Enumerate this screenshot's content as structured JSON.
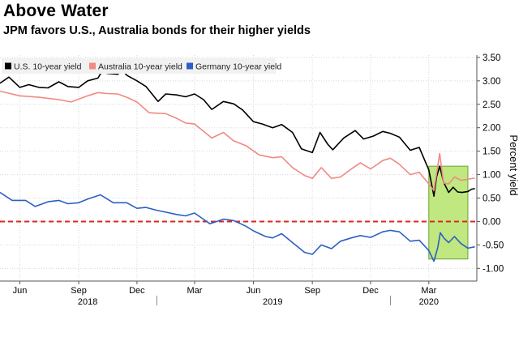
{
  "title": "Above Water",
  "subtitle": "JPM favors U.S., Australia bonds for their higher yields",
  "chart_data": {
    "type": "line",
    "title": "Above Water",
    "subtitle": "JPM favors U.S., Australia bonds for their higher yields",
    "ylabel": "Percent yield",
    "xlabel": "",
    "ylim": [
      -1.15,
      3.55
    ],
    "xlim": [
      "2018-05-01",
      "2020-05-15"
    ],
    "y_ticks": [
      3.5,
      3.0,
      2.5,
      2.0,
      1.5,
      1.0,
      0.5,
      0.0,
      -0.5,
      -1.0
    ],
    "y_tick_labels": [
      "3.50",
      "3.00",
      "2.50",
      "2.00",
      "1.50",
      "1.00",
      "0.50",
      "0.00",
      "-0.50",
      "-1.00"
    ],
    "x_ticks": [
      {
        "date": "2018-06-01",
        "label": "Jun"
      },
      {
        "date": "2018-09-01",
        "label": "Sep"
      },
      {
        "date": "2018-12-01",
        "label": "Dec"
      },
      {
        "date": "2019-03-01",
        "label": "Mar"
      },
      {
        "date": "2019-06-01",
        "label": "Jun"
      },
      {
        "date": "2019-09-01",
        "label": "Sep"
      },
      {
        "date": "2019-12-01",
        "label": "Dec"
      },
      {
        "date": "2020-03-01",
        "label": "Mar"
      }
    ],
    "year_labels": [
      {
        "date": "2018-09-15",
        "label": "2018"
      },
      {
        "date": "2019-07-01",
        "label": "2019"
      },
      {
        "date": "2020-03-01",
        "label": "2020"
      }
    ],
    "year_separators": [
      "2019-01-01",
      "2020-01-01"
    ],
    "grid": true,
    "legend_placement": "top-left",
    "reference_line": {
      "y": 0.0,
      "color": "#d9281e",
      "style": "dashed"
    },
    "highlight_box": {
      "x0": "2020-03-01",
      "x1": "2020-05-01",
      "y0": -0.8,
      "y1": 1.18,
      "color": "#b5e36a"
    },
    "series": [
      {
        "name": "U.S. 10-year yield",
        "color": "#000000",
        "points": [
          [
            "2018-05-01",
            2.95
          ],
          [
            "2018-05-15",
            3.08
          ],
          [
            "2018-06-01",
            2.86
          ],
          [
            "2018-06-15",
            2.92
          ],
          [
            "2018-07-01",
            2.86
          ],
          [
            "2018-07-15",
            2.85
          ],
          [
            "2018-08-01",
            2.98
          ],
          [
            "2018-08-15",
            2.88
          ],
          [
            "2018-09-01",
            2.86
          ],
          [
            "2018-09-15",
            3.0
          ],
          [
            "2018-10-01",
            3.06
          ],
          [
            "2018-10-08",
            3.22
          ],
          [
            "2018-10-15",
            3.16
          ],
          [
            "2018-11-01",
            3.14
          ],
          [
            "2018-11-08",
            3.23
          ],
          [
            "2018-11-15",
            3.12
          ],
          [
            "2018-12-01",
            3.0
          ],
          [
            "2018-12-15",
            2.88
          ],
          [
            "2019-01-03",
            2.56
          ],
          [
            "2019-01-15",
            2.72
          ],
          [
            "2019-02-01",
            2.7
          ],
          [
            "2019-02-15",
            2.66
          ],
          [
            "2019-03-01",
            2.72
          ],
          [
            "2019-03-15",
            2.6
          ],
          [
            "2019-03-28",
            2.39
          ],
          [
            "2019-04-15",
            2.56
          ],
          [
            "2019-05-01",
            2.51
          ],
          [
            "2019-05-15",
            2.38
          ],
          [
            "2019-06-01",
            2.13
          ],
          [
            "2019-06-15",
            2.08
          ],
          [
            "2019-07-01",
            2.0
          ],
          [
            "2019-07-15",
            2.07
          ],
          [
            "2019-08-01",
            1.9
          ],
          [
            "2019-08-15",
            1.55
          ],
          [
            "2019-09-01",
            1.47
          ],
          [
            "2019-09-13",
            1.9
          ],
          [
            "2019-09-25",
            1.65
          ],
          [
            "2019-10-03",
            1.53
          ],
          [
            "2019-10-20",
            1.78
          ],
          [
            "2019-11-07",
            1.94
          ],
          [
            "2019-11-20",
            1.76
          ],
          [
            "2019-12-05",
            1.82
          ],
          [
            "2019-12-20",
            1.92
          ],
          [
            "2020-01-01",
            1.88
          ],
          [
            "2020-01-15",
            1.8
          ],
          [
            "2020-02-01",
            1.52
          ],
          [
            "2020-02-15",
            1.58
          ],
          [
            "2020-03-01",
            1.1
          ],
          [
            "2020-03-09",
            0.54
          ],
          [
            "2020-03-13",
            0.95
          ],
          [
            "2020-03-18",
            1.18
          ],
          [
            "2020-03-24",
            0.84
          ],
          [
            "2020-04-01",
            0.62
          ],
          [
            "2020-04-08",
            0.73
          ],
          [
            "2020-04-15",
            0.63
          ],
          [
            "2020-04-22",
            0.62
          ],
          [
            "2020-05-01",
            0.64
          ],
          [
            "2020-05-07",
            0.69
          ],
          [
            "2020-05-12",
            0.7
          ]
        ]
      },
      {
        "name": "Australia 10-year yield",
        "color": "#f08a83",
        "points": [
          [
            "2018-05-01",
            2.78
          ],
          [
            "2018-06-01",
            2.68
          ],
          [
            "2018-07-01",
            2.65
          ],
          [
            "2018-08-01",
            2.6
          ],
          [
            "2018-08-20",
            2.55
          ],
          [
            "2018-09-15",
            2.68
          ],
          [
            "2018-10-01",
            2.75
          ],
          [
            "2018-10-15",
            2.73
          ],
          [
            "2018-11-01",
            2.72
          ],
          [
            "2018-11-15",
            2.65
          ],
          [
            "2018-12-01",
            2.55
          ],
          [
            "2018-12-20",
            2.32
          ],
          [
            "2019-01-15",
            2.3
          ],
          [
            "2019-02-01",
            2.2
          ],
          [
            "2019-02-15",
            2.1
          ],
          [
            "2019-03-01",
            2.08
          ],
          [
            "2019-03-28",
            1.78
          ],
          [
            "2019-04-15",
            1.9
          ],
          [
            "2019-05-01",
            1.72
          ],
          [
            "2019-05-20",
            1.62
          ],
          [
            "2019-06-10",
            1.42
          ],
          [
            "2019-07-01",
            1.36
          ],
          [
            "2019-07-15",
            1.38
          ],
          [
            "2019-08-01",
            1.15
          ],
          [
            "2019-08-20",
            0.98
          ],
          [
            "2019-09-01",
            0.92
          ],
          [
            "2019-09-15",
            1.15
          ],
          [
            "2019-10-01",
            0.92
          ],
          [
            "2019-10-15",
            0.95
          ],
          [
            "2019-11-01",
            1.12
          ],
          [
            "2019-11-15",
            1.25
          ],
          [
            "2019-12-01",
            1.12
          ],
          [
            "2019-12-20",
            1.3
          ],
          [
            "2020-01-01",
            1.35
          ],
          [
            "2020-01-15",
            1.22
          ],
          [
            "2020-02-01",
            1.0
          ],
          [
            "2020-02-15",
            1.05
          ],
          [
            "2020-03-01",
            0.8
          ],
          [
            "2020-03-09",
            0.66
          ],
          [
            "2020-03-18",
            1.45
          ],
          [
            "2020-03-24",
            0.82
          ],
          [
            "2020-04-01",
            0.8
          ],
          [
            "2020-04-10",
            0.95
          ],
          [
            "2020-04-20",
            0.88
          ],
          [
            "2020-05-01",
            0.9
          ],
          [
            "2020-05-12",
            0.93
          ]
        ]
      },
      {
        "name": "Germany 10-year yield",
        "color": "#2b5fc4",
        "points": [
          [
            "2018-05-01",
            0.62
          ],
          [
            "2018-05-20",
            0.45
          ],
          [
            "2018-06-10",
            0.45
          ],
          [
            "2018-06-25",
            0.32
          ],
          [
            "2018-07-15",
            0.42
          ],
          [
            "2018-08-01",
            0.45
          ],
          [
            "2018-08-15",
            0.38
          ],
          [
            "2018-09-01",
            0.4
          ],
          [
            "2018-09-15",
            0.48
          ],
          [
            "2018-10-05",
            0.57
          ],
          [
            "2018-10-25",
            0.4
          ],
          [
            "2018-11-15",
            0.4
          ],
          [
            "2018-12-01",
            0.28
          ],
          [
            "2018-12-15",
            0.3
          ],
          [
            "2019-01-01",
            0.24
          ],
          [
            "2019-01-15",
            0.2
          ],
          [
            "2019-02-01",
            0.15
          ],
          [
            "2019-02-15",
            0.12
          ],
          [
            "2019-03-01",
            0.18
          ],
          [
            "2019-03-25",
            -0.05
          ],
          [
            "2019-04-15",
            0.05
          ],
          [
            "2019-05-01",
            0.02
          ],
          [
            "2019-05-20",
            -0.1
          ],
          [
            "2019-06-01",
            -0.2
          ],
          [
            "2019-06-20",
            -0.32
          ],
          [
            "2019-07-01",
            -0.35
          ],
          [
            "2019-07-15",
            -0.26
          ],
          [
            "2019-08-01",
            -0.45
          ],
          [
            "2019-08-20",
            -0.66
          ],
          [
            "2019-09-01",
            -0.7
          ],
          [
            "2019-09-15",
            -0.5
          ],
          [
            "2019-10-01",
            -0.58
          ],
          [
            "2019-10-15",
            -0.42
          ],
          [
            "2019-11-01",
            -0.35
          ],
          [
            "2019-11-15",
            -0.3
          ],
          [
            "2019-12-01",
            -0.34
          ],
          [
            "2019-12-20",
            -0.22
          ],
          [
            "2020-01-01",
            -0.19
          ],
          [
            "2020-01-15",
            -0.22
          ],
          [
            "2020-02-01",
            -0.42
          ],
          [
            "2020-02-15",
            -0.4
          ],
          [
            "2020-03-01",
            -0.62
          ],
          [
            "2020-03-09",
            -0.85
          ],
          [
            "2020-03-15",
            -0.55
          ],
          [
            "2020-03-19",
            -0.24
          ],
          [
            "2020-03-25",
            -0.36
          ],
          [
            "2020-04-01",
            -0.45
          ],
          [
            "2020-04-10",
            -0.32
          ],
          [
            "2020-04-20",
            -0.47
          ],
          [
            "2020-05-01",
            -0.57
          ],
          [
            "2020-05-12",
            -0.54
          ]
        ]
      }
    ]
  }
}
